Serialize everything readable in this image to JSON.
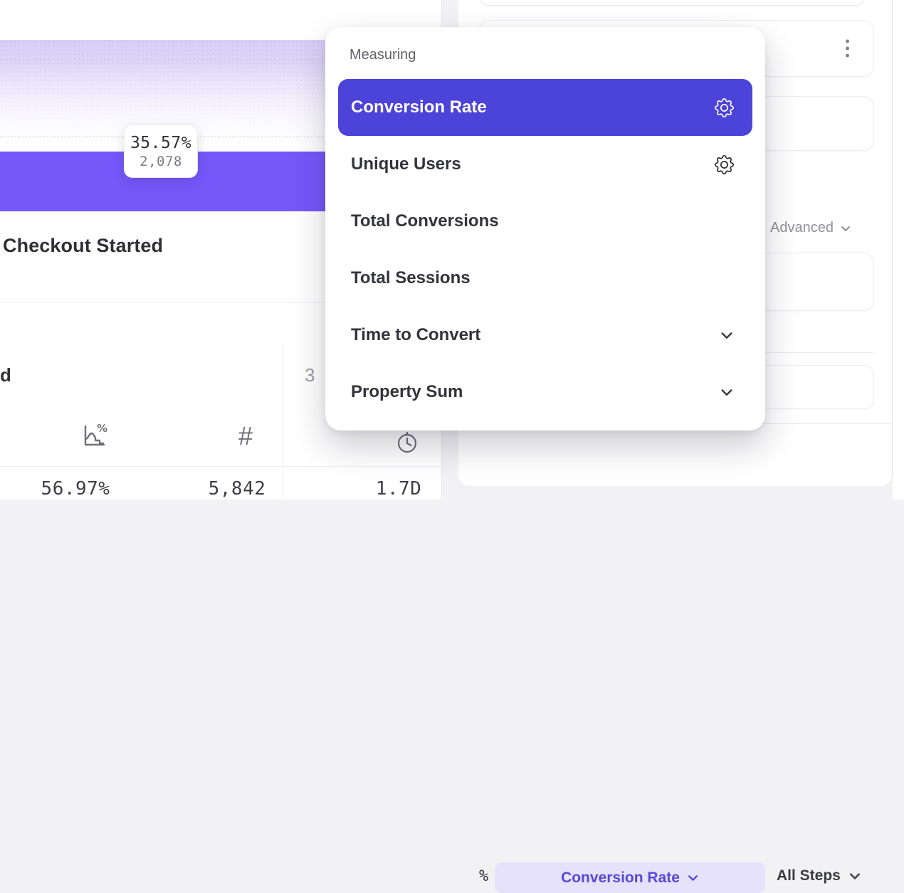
{
  "colors": {
    "accent": "#4c43d9",
    "funnel_bar": "#7557fa",
    "dropoff_top": "#d9cef7",
    "chip_bg": "#e6e2fc",
    "chip_text": "#5649d8"
  },
  "left_panel": {
    "tooltip": {
      "rate": "35.57%",
      "count": "2,078"
    },
    "step_title": "Checkout Started",
    "table": {
      "truncated_step_name": "d",
      "next_step_number": "3",
      "columns": [
        {
          "icon": "conversion-rate-icon"
        },
        {
          "icon": "number-icon",
          "glyph": "#"
        },
        {
          "icon": "clock-icon"
        }
      ],
      "values": [
        "56.97%",
        "5,842",
        "1.7D"
      ]
    }
  },
  "dropdown": {
    "label": "Measuring",
    "items": [
      {
        "label": "Conversion Rate",
        "selected": true,
        "gear": true
      },
      {
        "label": "Unique Users",
        "selected": false,
        "gear": true
      },
      {
        "label": "Total Conversions",
        "selected": false
      },
      {
        "label": "Total Sessions",
        "selected": false
      },
      {
        "label": "Time to Convert",
        "selected": false,
        "chevron": true
      },
      {
        "label": "Property Sum",
        "selected": false,
        "chevron": true
      }
    ]
  },
  "right_panel": {
    "advanced_label": "Advanced",
    "footer": {
      "metric_prefix_glyph": "%",
      "metric_chip_label": "Conversion Rate",
      "steps_selector_label": "All Steps"
    }
  }
}
